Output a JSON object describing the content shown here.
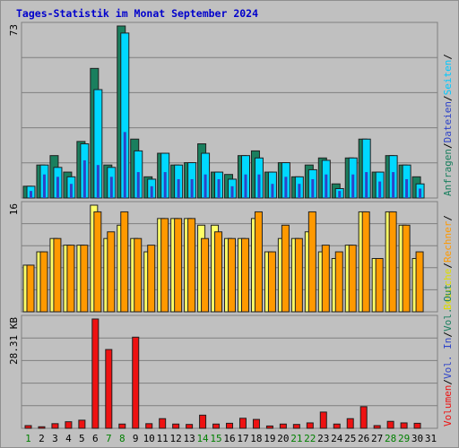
{
  "title": "Tages-Statistik im Monat September 2024",
  "chart_data": [
    {
      "type": "bar",
      "categories": [
        "1",
        "2",
        "3",
        "4",
        "5",
        "6",
        "7",
        "8",
        "9",
        "10",
        "11",
        "12",
        "13",
        "14",
        "15",
        "16",
        "17",
        "18",
        "19",
        "20",
        "21",
        "22",
        "23",
        "24",
        "25",
        "26",
        "27",
        "28",
        "29",
        "30",
        "31"
      ],
      "day_colors": [
        "#008000",
        "#000000",
        "#000000",
        "#000000",
        "#000000",
        "#000000",
        "#008000",
        "#008000",
        "#000000",
        "#000000",
        "#000000",
        "#000000",
        "#000000",
        "#008000",
        "#008000",
        "#000000",
        "#000000",
        "#000000",
        "#000000",
        "#000000",
        "#008000",
        "#008000",
        "#000000",
        "#000000",
        "#000000",
        "#000000",
        "#000000",
        "#008000",
        "#008000",
        "#000000",
        "#000000"
      ],
      "ymax_label": "73",
      "ylim": [
        0,
        73
      ],
      "series": [
        {
          "name": "Anfragen",
          "color": "#1a7f5e",
          "values": [
            5,
            14,
            18,
            11,
            24,
            55,
            14,
            73,
            25,
            9,
            19,
            14,
            15,
            23,
            11,
            10,
            18,
            20,
            11,
            15,
            9,
            14,
            17,
            6,
            17,
            25,
            11,
            18,
            14,
            9,
            0
          ]
        },
        {
          "name": "Dateien",
          "color": "#00d8ff",
          "values": [
            5,
            14,
            13,
            9,
            23,
            46,
            13,
            70,
            20,
            8,
            19,
            14,
            15,
            19,
            11,
            8,
            18,
            17,
            11,
            15,
            9,
            12,
            16,
            4,
            17,
            25,
            11,
            18,
            14,
            6,
            0
          ]
        },
        {
          "name": "Seiten",
          "color": "#2e43c8",
          "values": [
            3,
            10,
            9,
            6,
            16,
            14,
            9,
            28,
            11,
            5,
            11,
            8,
            8,
            10,
            8,
            5,
            10,
            10,
            6,
            9,
            6,
            8,
            10,
            3,
            10,
            11,
            7,
            11,
            8,
            4,
            0
          ]
        }
      ],
      "right_labels": [
        "Anfragen",
        "Dateien",
        "Seiten"
      ]
    },
    {
      "type": "bar",
      "ymax_label": "16",
      "ylim": [
        0,
        16
      ],
      "series": [
        {
          "name": "Besuche",
          "color": "#ffff66",
          "values": [
            7,
            9,
            11,
            10,
            10,
            16,
            11,
            13,
            11,
            9,
            14,
            14,
            14,
            13,
            13,
            11,
            11,
            14,
            9,
            11,
            11,
            12,
            9,
            8,
            10,
            15,
            8,
            15,
            13,
            8,
            0
          ]
        },
        {
          "name": "Rechner",
          "color": "#ff9900",
          "values": [
            7,
            9,
            11,
            10,
            10,
            15,
            12,
            15,
            11,
            10,
            14,
            14,
            14,
            11,
            12,
            11,
            11,
            15,
            9,
            13,
            11,
            15,
            10,
            9,
            10,
            15,
            8,
            15,
            13,
            9,
            0
          ]
        }
      ],
      "right_labels": [
        "Besuche",
        "Rechner"
      ]
    },
    {
      "type": "bar",
      "ymax_label": "28.31 KB",
      "ylim": [
        0,
        28.31
      ],
      "series": [
        {
          "name": "Volumen",
          "color": "#ee1111",
          "values": [
            0.7,
            0.4,
            1.2,
            1.7,
            2.1,
            28.31,
            20.4,
            1.1,
            23.6,
            1.2,
            2.5,
            1.1,
            1.0,
            3.4,
            1.1,
            1.3,
            2.6,
            2.3,
            0.6,
            1.1,
            1.0,
            1.4,
            4.2,
            1.1,
            2.5,
            5.6,
            0.7,
            1.8,
            1.4,
            1.3,
            0.0
          ]
        }
      ],
      "right_labels": [
        "Volumen",
        "Vol. In",
        "Vol. Out"
      ]
    }
  ],
  "right_label_colors": {
    "Anfragen": "#1a7f5e",
    "Dateien": "#2e43c8",
    "Seiten": "#00c8ff",
    "Besuche": "#dddd00",
    "Rechner": "#ff9900",
    "Volumen": "#ee1111",
    "Vol. In": "#2e43c8",
    "Vol. Out": "#1a7f5e"
  },
  "separator": "/"
}
